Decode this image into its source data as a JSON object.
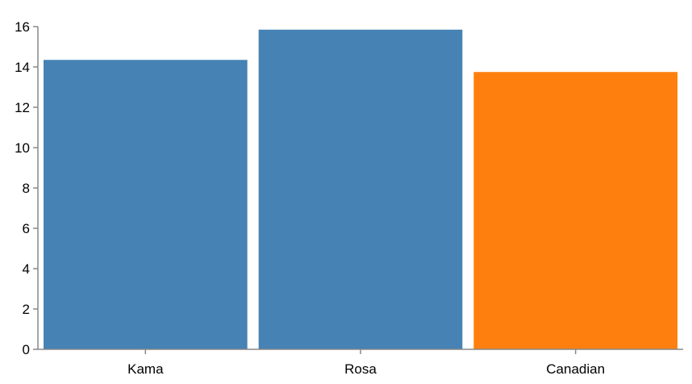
{
  "chart_data": {
    "type": "bar",
    "title": "",
    "xlabel": "",
    "ylabel": "",
    "categories": [
      "Kama",
      "Rosa",
      "Canadian"
    ],
    "values": [
      14.35,
      15.85,
      13.75
    ],
    "bar_colors": [
      "#4682b4",
      "#4682b4",
      "#ff7f0e"
    ],
    "ylim": [
      0,
      16
    ],
    "yticks": [
      0,
      2,
      4,
      6,
      8,
      10,
      12,
      14,
      16
    ],
    "grid": false,
    "legend": "none"
  }
}
